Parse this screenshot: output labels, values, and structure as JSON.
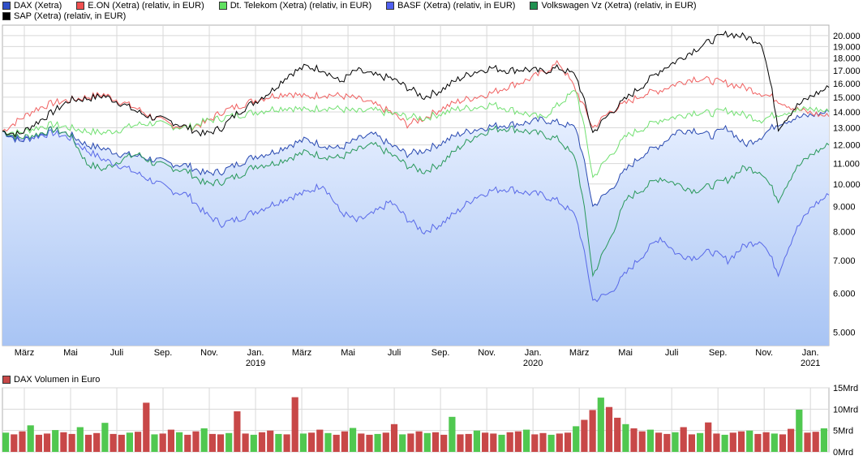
{
  "legend": {
    "row1": [
      {
        "label": "DAX (Xetra)",
        "color": "#3050c8"
      },
      {
        "label": "E.ON (Xetra) (relativ, in EUR)",
        "color": "#f05050"
      },
      {
        "label": "Dt. Telekom (Xetra) (relativ, in EUR)",
        "color": "#60e060"
      },
      {
        "label": "BASF (Xetra) (relativ, in EUR)",
        "color": "#5060f0"
      },
      {
        "label": "Volkswagen Vz (Xetra) (relativ, in EUR)",
        "color": "#209050"
      }
    ],
    "row2": [
      {
        "label": "SAP (Xetra) (relativ, in EUR)",
        "color": "#000000"
      }
    ]
  },
  "volume_legend": {
    "label": "DAX Volumen in Euro",
    "color": "#c03030"
  },
  "chart_data": [
    {
      "type": "line",
      "title": "",
      "y_scale": "log",
      "ylim": [
        4700,
        21000
      ],
      "y_ticks": [
        "20.000",
        "19.000",
        "18.000",
        "17.000",
        "16.000",
        "15.000",
        "14.000",
        "13.000",
        "12.000",
        "11.000",
        "10.000",
        "9.000",
        "8.000",
        "7.000",
        "6.000",
        "5.000"
      ],
      "y_tick_values": [
        20000,
        19000,
        18000,
        17000,
        16000,
        15000,
        14000,
        13000,
        12000,
        11000,
        10000,
        9000,
        8000,
        7000,
        6000,
        5000
      ],
      "x_month_labels": [
        "März",
        "Mai",
        "Juli",
        "Sep.",
        "Nov.",
        "Jan.",
        "März",
        "Mai",
        "Juli",
        "Sep.",
        "Nov.",
        "Jan.",
        "März",
        "Mai",
        "Juli",
        "Sep.",
        "Nov.",
        "Jan."
      ],
      "x_year_labels": [
        {
          "label": "2019",
          "under": 5
        },
        {
          "label": "2020",
          "under": 11
        },
        {
          "label": "2021",
          "under": 17
        }
      ],
      "series": [
        {
          "name": "DAX (Xetra)",
          "color": "#2848b0",
          "fill": true,
          "values": [
            12800,
            12200,
            12500,
            12900,
            12600,
            12000,
            11800,
            11500,
            11400,
            11200,
            11000,
            10900,
            10500,
            10600,
            11000,
            11400,
            11600,
            12000,
            12300,
            12000,
            11800,
            12300,
            12600,
            12000,
            11500,
            11700,
            12100,
            12600,
            12900,
            13100,
            13200,
            13300,
            13500,
            13300,
            13000,
            9000,
            9700,
            10700,
            11500,
            12000,
            12800,
            12900,
            12500,
            13000,
            12000,
            12500,
            13300,
            13600,
            13800,
            14000
          ]
        },
        {
          "name": "E.ON (Xetra) (relativ, in EUR)",
          "color": "#f06060",
          "values": [
            12800,
            13500,
            14200,
            14600,
            14800,
            15000,
            15200,
            14700,
            14200,
            13600,
            13200,
            13000,
            13300,
            14000,
            14400,
            14800,
            15100,
            15300,
            15000,
            15200,
            15100,
            14900,
            14500,
            14000,
            13200,
            13600,
            14200,
            14700,
            15000,
            15300,
            15800,
            16200,
            16800,
            17600,
            15500,
            13000,
            14000,
            14600,
            15200,
            15500,
            16000,
            16400,
            16200,
            16000,
            15700,
            15300,
            14800,
            14200,
            13900,
            13700
          ]
        },
        {
          "name": "Dt. Telekom (Xetra) (relativ, in EUR)",
          "color": "#70e070",
          "values": [
            12800,
            12700,
            13000,
            13200,
            13000,
            12800,
            12700,
            12900,
            13200,
            13300,
            13100,
            13000,
            13400,
            13600,
            13800,
            14000,
            14200,
            14300,
            14100,
            14300,
            14200,
            14000,
            14100,
            13900,
            13700,
            13600,
            13900,
            14200,
            14300,
            14500,
            14200,
            13900,
            13600,
            14500,
            15500,
            10300,
            11400,
            12500,
            13000,
            13500,
            13700,
            14000,
            13900,
            14100,
            13800,
            13500,
            13900,
            14100,
            14200,
            14000
          ]
        },
        {
          "name": "BASF (Xetra) (relativ, in EUR)",
          "color": "#5868e8",
          "values": [
            12800,
            12300,
            12500,
            12700,
            12400,
            11700,
            11200,
            10900,
            10500,
            10100,
            9700,
            9500,
            8700,
            8300,
            8500,
            8800,
            9100,
            9400,
            9600,
            10000,
            8800,
            8400,
            8700,
            9200,
            8500,
            8000,
            8300,
            8800,
            9400,
            9700,
            9800,
            9600,
            9500,
            9200,
            8600,
            5800,
            6000,
            6600,
            7200,
            7800,
            7200,
            7100,
            7300,
            7000,
            7500,
            7700,
            6600,
            8000,
            9000,
            9500
          ]
        },
        {
          "name": "Volkswagen Vz (Xetra) (relativ, in EUR)",
          "color": "#28985a",
          "values": [
            12800,
            12400,
            12600,
            12900,
            12600,
            11000,
            10700,
            11200,
            11500,
            11000,
            10800,
            10600,
            10000,
            10100,
            10400,
            10900,
            11000,
            11300,
            11600,
            11400,
            11300,
            11700,
            12000,
            11500,
            10900,
            10600,
            11000,
            11800,
            12500,
            12900,
            13000,
            12800,
            12600,
            12300,
            11200,
            6500,
            7700,
            9300,
            9800,
            10300,
            10000,
            9700,
            9900,
            10200,
            10800,
            10600,
            9300,
            10700,
            11500,
            12000
          ]
        },
        {
          "name": "SAP (Xetra) (relativ, in EUR)",
          "color": "#000000",
          "values": [
            12800,
            12600,
            13300,
            14000,
            14800,
            14900,
            15100,
            14600,
            14000,
            13600,
            13400,
            13000,
            12600,
            13000,
            14000,
            14700,
            15500,
            16700,
            17300,
            17100,
            16100,
            17000,
            16600,
            16400,
            15700,
            15000,
            15500,
            16300,
            16900,
            17200,
            17000,
            17100,
            16900,
            17200,
            16600,
            12700,
            13900,
            14900,
            15900,
            17000,
            17800,
            18700,
            19500,
            20200,
            19900,
            19400,
            13000,
            14300,
            15100,
            15700
          ]
        }
      ]
    },
    {
      "type": "bar",
      "title": "DAX Volumen in Euro",
      "ylim": [
        0,
        15
      ],
      "y_ticks": [
        "15Mrd",
        "10Mrd",
        "5Mrd",
        "0Mrd"
      ],
      "y_tick_values": [
        15,
        10,
        5,
        0
      ],
      "bar_colors": {
        "up": "#50c850",
        "down": "#c84848"
      },
      "values": [
        4.5,
        4.1,
        4.8,
        6.2,
        4.0,
        4.3,
        5.1,
        4.6,
        4.2,
        5.8,
        4.0,
        4.4,
        6.8,
        4.2,
        4.0,
        4.5,
        4.7,
        11.5,
        4.1,
        4.3,
        5.2,
        4.6,
        4.0,
        4.8,
        5.5,
        4.2,
        4.1,
        4.4,
        9.5,
        4.3,
        4.0,
        4.6,
        5.0,
        4.2,
        4.1,
        12.8,
        4.3,
        4.5,
        5.2,
        4.4,
        4.0,
        4.8,
        5.6,
        4.3,
        4.0,
        4.2,
        4.5,
        6.5,
        4.1,
        4.3,
        4.8,
        4.4,
        4.6,
        4.0,
        8.2,
        4.1,
        4.2,
        5.0,
        4.5,
        4.3,
        4.0,
        4.6,
        4.8,
        5.2,
        4.1,
        4.4,
        4.0,
        4.3,
        4.5,
        6.0,
        7.5,
        9.8,
        12.7,
        10.5,
        8.0,
        6.5,
        5.5,
        4.8,
        5.2,
        4.5,
        4.2,
        4.6,
        5.8,
        4.1,
        4.4,
        6.9,
        4.3,
        4.0,
        4.5,
        4.8,
        5.0,
        4.2,
        4.6,
        4.3,
        4.1,
        5.4,
        9.9,
        4.5,
        4.7,
        5.5
      ]
    }
  ]
}
